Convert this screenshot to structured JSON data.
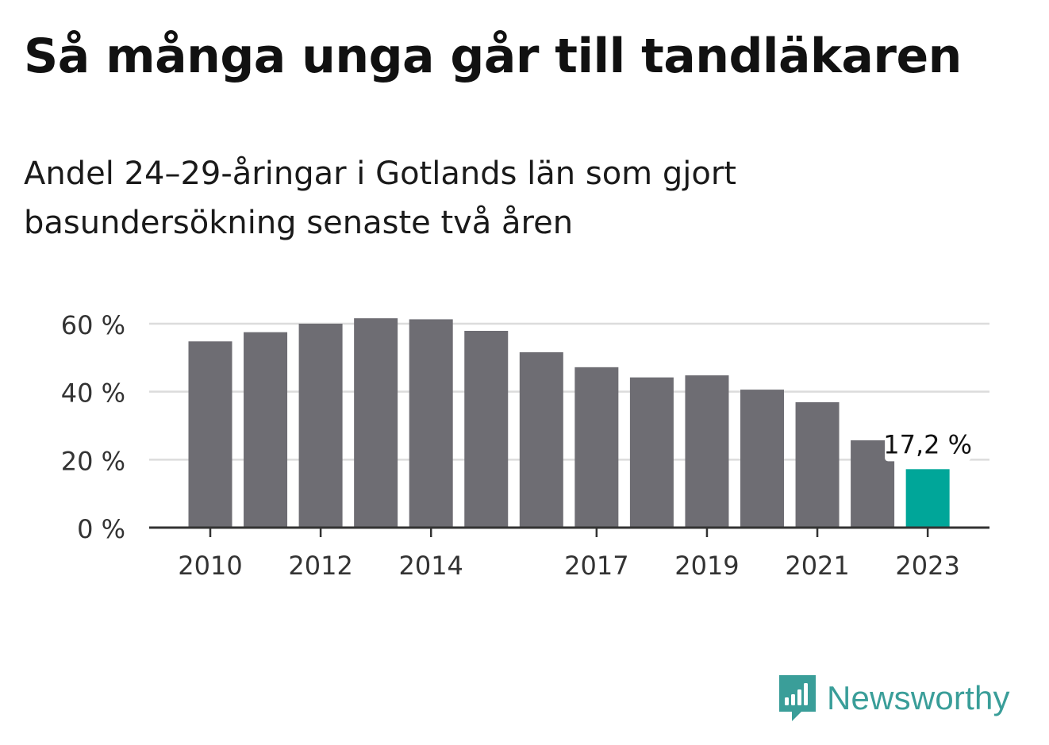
{
  "header": {
    "title": "Så många unga går till tandläkaren",
    "subtitle": "Andel 24–29-åringar i Gotlands län som gjort basundersökning senaste två åren"
  },
  "brand": {
    "name": "Newsworthy",
    "icon": "newsworthy-logo-icon",
    "color": "#3a9e99"
  },
  "chart_data": {
    "type": "bar",
    "title": "Så många unga går till tandläkaren",
    "subtitle": "Andel 24–29-åringar i Gotlands län som gjort basundersökning senaste två åren",
    "categories": [
      "2010",
      "2011",
      "2012",
      "2013",
      "2014",
      "2015",
      "2016",
      "2017",
      "2018",
      "2019",
      "2020",
      "2021",
      "2022",
      "2023"
    ],
    "values": [
      54.8,
      57.5,
      60.0,
      61.6,
      61.3,
      57.9,
      51.6,
      47.2,
      44.2,
      44.8,
      40.6,
      36.9,
      25.7,
      17.2
    ],
    "x_tick_labels": [
      "2010",
      "2012",
      "2014",
      "2017",
      "2019",
      "2021",
      "2023"
    ],
    "y_ticks": [
      0,
      20,
      40,
      60
    ],
    "y_tick_labels": [
      "0 %",
      "20 %",
      "40 %",
      "60 %"
    ],
    "ylim": [
      0,
      60
    ],
    "grid": true,
    "annotation": {
      "category": "2023",
      "label": "17,2 %"
    },
    "colors": {
      "bar": "#6e6d73",
      "highlight": "#00a699",
      "grid": "#dcdcdc",
      "axis": "#333333"
    }
  }
}
